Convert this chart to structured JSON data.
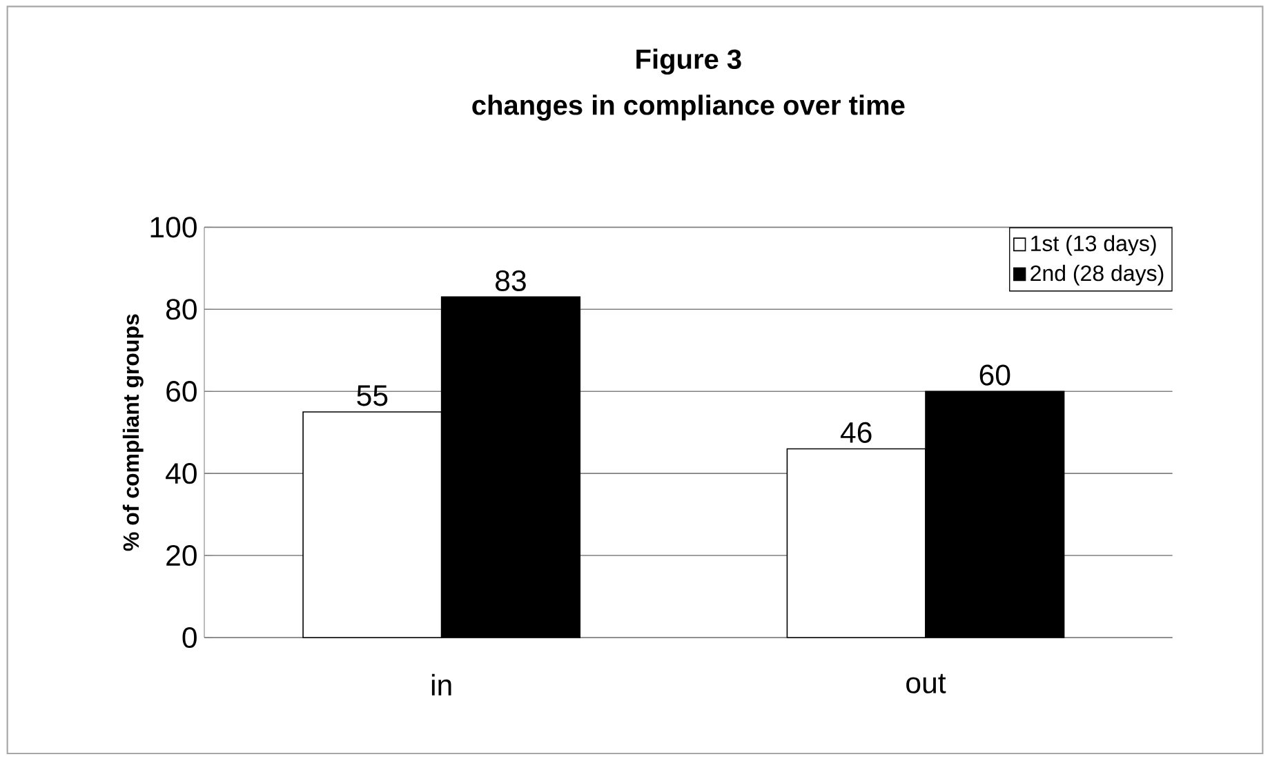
{
  "chart_data": {
    "type": "bar",
    "title": "Figure 3",
    "subtitle": "changes in compliance over time",
    "ylabel": "% of compliant groups",
    "categories": [
      "in",
      "out"
    ],
    "series": [
      {
        "name": "1st (13 days)",
        "color": "#ffffff",
        "values": [
          55,
          46
        ]
      },
      {
        "name": "2nd (28 days)",
        "color": "#000000",
        "values": [
          83,
          60
        ]
      }
    ],
    "ylim": [
      0,
      100
    ],
    "yticks": [
      0,
      20,
      40,
      60,
      80,
      100
    ],
    "grid": "y",
    "legend": "top right",
    "data_labels": true
  }
}
